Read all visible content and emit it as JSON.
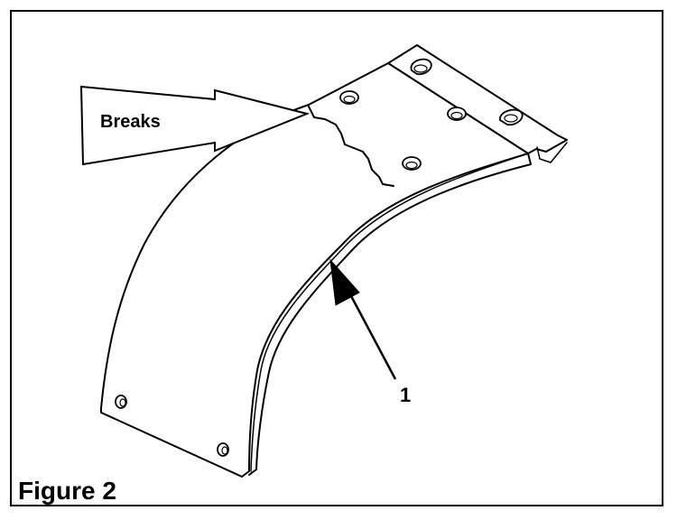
{
  "figure": {
    "caption": "Figure 2",
    "callouts": {
      "breaks": "Breaks",
      "item_1": "1"
    },
    "colors": {
      "ink": "#000000",
      "paper": "#ffffff"
    }
  }
}
